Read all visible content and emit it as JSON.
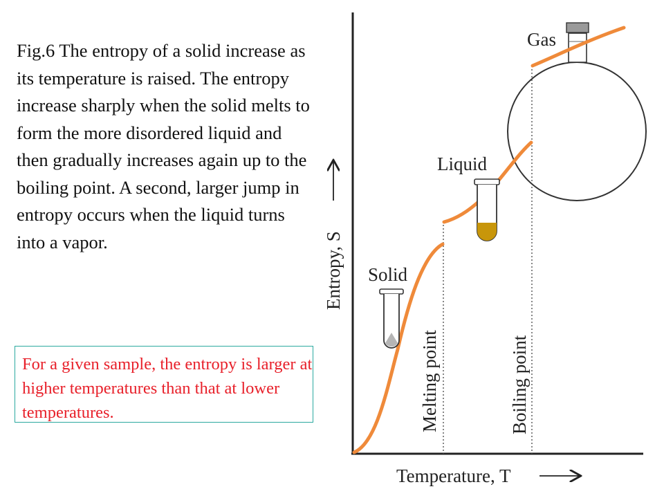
{
  "caption": "Fig.6  The entropy of a solid increase as its temperature is raised. The entropy increase sharply when the solid melts to form the more disordered liquid and then gradually increases again up to the boiling point. A second, larger jump in entropy occurs when the liquid turns into a vapor.",
  "note": "For a given sample, the entropy is larger at higher temperatures than that at lower temperatures.",
  "figure": {
    "y_axis_label": "Entropy, S",
    "x_axis_label": "Temperature, T",
    "melting_label": "Melting point",
    "boiling_label": "Boiling point",
    "phase_solid": "Solid",
    "phase_liquid": "Liquid",
    "phase_gas": "Gas",
    "curve_color": "#ef8a3a",
    "liquid_fill_color": "#c8960a"
  }
}
